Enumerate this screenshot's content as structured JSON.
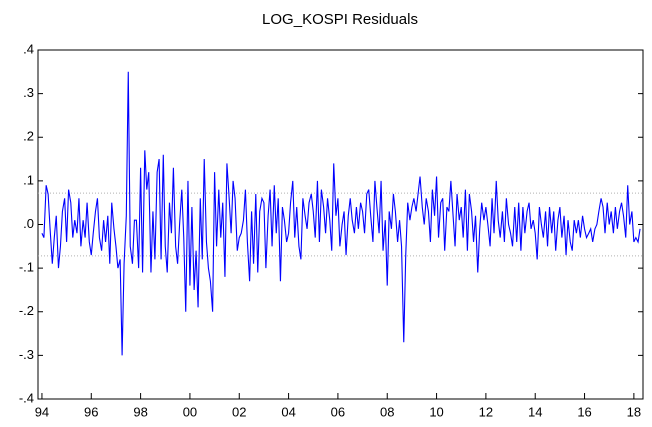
{
  "chart_data": {
    "type": "line",
    "title": "LOG_KOSPI Residuals",
    "xlim": [
      1993.84,
      2018.37
    ],
    "ylim": [
      -0.4,
      0.4
    ],
    "xticks": [
      {
        "value": 1994,
        "label": "94"
      },
      {
        "value": 1996,
        "label": "96"
      },
      {
        "value": 1998,
        "label": "98"
      },
      {
        "value": 2000,
        "label": "00"
      },
      {
        "value": 2002,
        "label": "02"
      },
      {
        "value": 2004,
        "label": "04"
      },
      {
        "value": 2006,
        "label": "06"
      },
      {
        "value": 2008,
        "label": "08"
      },
      {
        "value": 2010,
        "label": "10"
      },
      {
        "value": 2012,
        "label": "12"
      },
      {
        "value": 2014,
        "label": "14"
      },
      {
        "value": 2016,
        "label": "16"
      },
      {
        "value": 2018,
        "label": "18"
      }
    ],
    "yticks": [
      {
        "value": 0.4,
        "label": ".4"
      },
      {
        "value": 0.3,
        "label": ".3"
      },
      {
        "value": 0.2,
        "label": ".2"
      },
      {
        "value": 0.1,
        "label": ".1"
      },
      {
        "value": 0,
        "label": ".0"
      },
      {
        "value": -0.1,
        "label": "-.1"
      },
      {
        "value": -0.2,
        "label": "-.2"
      },
      {
        "value": -0.3,
        "label": "-.3"
      },
      {
        "value": -0.4,
        "label": "-.4"
      }
    ],
    "grid": false,
    "reference_lines": {
      "values": [
        0.072,
        -0.072
      ],
      "color": "#b0b0b0"
    },
    "x": [
      1994.0,
      1994.08,
      1994.17,
      1994.25,
      1994.33,
      1994.42,
      1994.5,
      1994.58,
      1994.67,
      1994.75,
      1994.83,
      1994.92,
      1995.0,
      1995.08,
      1995.17,
      1995.25,
      1995.33,
      1995.42,
      1995.5,
      1995.58,
      1995.67,
      1995.75,
      1995.83,
      1995.92,
      1996.0,
      1996.08,
      1996.17,
      1996.25,
      1996.33,
      1996.42,
      1996.5,
      1996.58,
      1996.67,
      1996.75,
      1996.83,
      1996.92,
      1997.0,
      1997.08,
      1997.17,
      1997.25,
      1997.33,
      1997.42,
      1997.5,
      1997.58,
      1997.67,
      1997.75,
      1997.83,
      1997.92,
      1998.0,
      1998.08,
      1998.17,
      1998.25,
      1998.33,
      1998.42,
      1998.5,
      1998.58,
      1998.67,
      1998.75,
      1998.83,
      1998.92,
      1999.0,
      1999.08,
      1999.17,
      1999.25,
      1999.33,
      1999.42,
      1999.5,
      1999.58,
      1999.67,
      1999.75,
      1999.83,
      1999.92,
      2000.0,
      2000.08,
      2000.17,
      2000.25,
      2000.33,
      2000.42,
      2000.5,
      2000.58,
      2000.67,
      2000.75,
      2000.83,
      2000.92,
      2001.0,
      2001.08,
      2001.17,
      2001.25,
      2001.33,
      2001.42,
      2001.5,
      2001.58,
      2001.67,
      2001.75,
      2001.83,
      2001.92,
      2002.0,
      2002.08,
      2002.17,
      2002.25,
      2002.33,
      2002.42,
      2002.5,
      2002.58,
      2002.67,
      2002.75,
      2002.83,
      2002.92,
      2003.0,
      2003.08,
      2003.17,
      2003.25,
      2003.33,
      2003.42,
      2003.5,
      2003.58,
      2003.67,
      2003.75,
      2003.83,
      2003.92,
      2004.0,
      2004.08,
      2004.17,
      2004.25,
      2004.33,
      2004.42,
      2004.5,
      2004.58,
      2004.67,
      2004.75,
      2004.83,
      2004.92,
      2005.0,
      2005.08,
      2005.17,
      2005.25,
      2005.33,
      2005.42,
      2005.5,
      2005.58,
      2005.67,
      2005.75,
      2005.83,
      2005.92,
      2006.0,
      2006.08,
      2006.17,
      2006.25,
      2006.33,
      2006.42,
      2006.5,
      2006.58,
      2006.67,
      2006.75,
      2006.83,
      2006.92,
      2007.0,
      2007.08,
      2007.17,
      2007.25,
      2007.33,
      2007.42,
      2007.5,
      2007.58,
      2007.67,
      2007.75,
      2007.83,
      2007.92,
      2008.0,
      2008.08,
      2008.17,
      2008.25,
      2008.33,
      2008.42,
      2008.5,
      2008.58,
      2008.67,
      2008.75,
      2008.83,
      2008.92,
      2009.0,
      2009.08,
      2009.17,
      2009.25,
      2009.33,
      2009.42,
      2009.5,
      2009.58,
      2009.67,
      2009.75,
      2009.83,
      2009.92,
      2010.0,
      2010.08,
      2010.17,
      2010.25,
      2010.33,
      2010.42,
      2010.5,
      2010.58,
      2010.67,
      2010.75,
      2010.83,
      2010.92,
      2011.0,
      2011.08,
      2011.17,
      2011.25,
      2011.33,
      2011.42,
      2011.5,
      2011.58,
      2011.67,
      2011.75,
      2011.83,
      2011.92,
      2012.0,
      2012.08,
      2012.17,
      2012.25,
      2012.33,
      2012.42,
      2012.5,
      2012.58,
      2012.67,
      2012.75,
      2012.83,
      2012.92,
      2013.0,
      2013.08,
      2013.17,
      2013.25,
      2013.33,
      2013.42,
      2013.5,
      2013.58,
      2013.67,
      2013.75,
      2013.83,
      2013.92,
      2014.0,
      2014.08,
      2014.17,
      2014.25,
      2014.33,
      2014.42,
      2014.5,
      2014.58,
      2014.67,
      2014.75,
      2014.83,
      2014.92,
      2015.0,
      2015.08,
      2015.17,
      2015.25,
      2015.33,
      2015.42,
      2015.5,
      2015.58,
      2015.67,
      2015.75,
      2015.83,
      2015.92,
      2016.0,
      2016.08,
      2016.17,
      2016.25,
      2016.33,
      2016.42,
      2016.5,
      2016.58,
      2016.67,
      2016.75,
      2016.83,
      2016.92,
      2017.0,
      2017.08,
      2017.17,
      2017.25,
      2017.33,
      2017.42,
      2017.5,
      2017.58,
      2017.67,
      2017.75,
      2017.83,
      2017.92,
      2018.0,
      2018.08,
      2018.17,
      2018.25
    ],
    "series": [
      {
        "color": "#0000ff",
        "values": [
          -0.02,
          -0.03,
          0.09,
          0.07,
          -0.01,
          -0.09,
          -0.03,
          0.02,
          -0.1,
          -0.05,
          0.03,
          0.06,
          -0.04,
          0.08,
          0.05,
          -0.03,
          0.01,
          -0.02,
          0.06,
          -0.05,
          0.01,
          -0.03,
          0.05,
          -0.04,
          -0.07,
          -0.02,
          0.03,
          0.06,
          -0.03,
          -0.06,
          0.01,
          -0.04,
          0.02,
          -0.09,
          0.05,
          -0.01,
          -0.05,
          -0.1,
          -0.08,
          -0.3,
          -0.09,
          0.02,
          0.35,
          -0.05,
          -0.09,
          0.01,
          0.01,
          -0.1,
          0.13,
          -0.11,
          0.17,
          0.08,
          0.12,
          -0.11,
          0.03,
          -0.08,
          0.12,
          0.15,
          -0.08,
          0.16,
          -0.05,
          -0.11,
          0.05,
          -0.02,
          0.13,
          -0.05,
          -0.09,
          0.0,
          0.08,
          -0.03,
          -0.2,
          0.1,
          -0.14,
          0.04,
          -0.15,
          -0.06,
          -0.19,
          0.06,
          -0.08,
          0.15,
          -0.04,
          -0.1,
          -0.13,
          -0.2,
          0.12,
          -0.05,
          0.08,
          -0.03,
          0.05,
          -0.12,
          0.14,
          0.07,
          -0.02,
          0.1,
          0.06,
          -0.06,
          -0.03,
          -0.02,
          0.01,
          0.08,
          -0.04,
          -0.13,
          0.03,
          -0.09,
          0.07,
          -0.11,
          0.03,
          0.06,
          0.05,
          -0.1,
          0.02,
          0.08,
          -0.05,
          0.09,
          -0.02,
          0.06,
          -0.13,
          0.04,
          0.01,
          -0.04,
          -0.02,
          0.05,
          0.1,
          -0.03,
          0.04,
          -0.05,
          -0.08,
          0.06,
          0.02,
          -0.01,
          0.05,
          0.07,
          0.03,
          -0.03,
          0.1,
          -0.04,
          0.08,
          0.04,
          -0.02,
          0.06,
          0.01,
          -0.06,
          0.14,
          0.02,
          0.06,
          -0.05,
          0.0,
          0.03,
          -0.07,
          0.02,
          0.06,
          0.01,
          -0.02,
          0.04,
          -0.01,
          0.05,
          0.03,
          -0.02,
          0.07,
          0.08,
          0.02,
          -0.04,
          0.1,
          0.04,
          -0.02,
          0.1,
          -0.06,
          0.01,
          -0.14,
          0.03,
          -0.01,
          0.07,
          0.03,
          -0.04,
          0.01,
          -0.05,
          -0.27,
          -0.07,
          0.05,
          0.01,
          0.04,
          0.06,
          0.03,
          0.07,
          0.11,
          0.04,
          0.0,
          0.06,
          0.03,
          -0.04,
          0.08,
          0.02,
          0.11,
          -0.03,
          0.05,
          0.06,
          -0.06,
          0.04,
          0.03,
          0.1,
          0.02,
          -0.05,
          0.07,
          0.01,
          0.04,
          -0.03,
          0.08,
          -0.06,
          0.07,
          0.03,
          -0.04,
          0.02,
          -0.11,
          -0.01,
          0.05,
          0.01,
          0.04,
          0.0,
          -0.05,
          0.06,
          -0.02,
          0.1,
          0.01,
          -0.03,
          0.03,
          -0.04,
          0.06,
          0.0,
          -0.02,
          -0.05,
          0.04,
          -0.04,
          0.05,
          -0.06,
          0.04,
          -0.02,
          0.03,
          0.05,
          -0.01,
          0.01,
          -0.02,
          -0.08,
          0.04,
          0.0,
          -0.03,
          0.03,
          -0.05,
          0.04,
          -0.02,
          0.03,
          -0.06,
          0.01,
          0.04,
          -0.03,
          0.02,
          -0.07,
          0.01,
          -0.04,
          -0.06,
          0.01,
          -0.02,
          0.01,
          -0.03,
          0.02,
          -0.01,
          -0.03,
          -0.02,
          -0.01,
          -0.04,
          -0.01,
          0.0,
          0.03,
          0.06,
          0.04,
          -0.02,
          0.05,
          0.0,
          0.03,
          -0.02,
          0.04,
          -0.01,
          0.03,
          0.05,
          0.02,
          -0.03,
          0.09,
          0.0,
          0.03,
          -0.04,
          -0.03,
          -0.04,
          -0.01
        ]
      }
    ]
  }
}
